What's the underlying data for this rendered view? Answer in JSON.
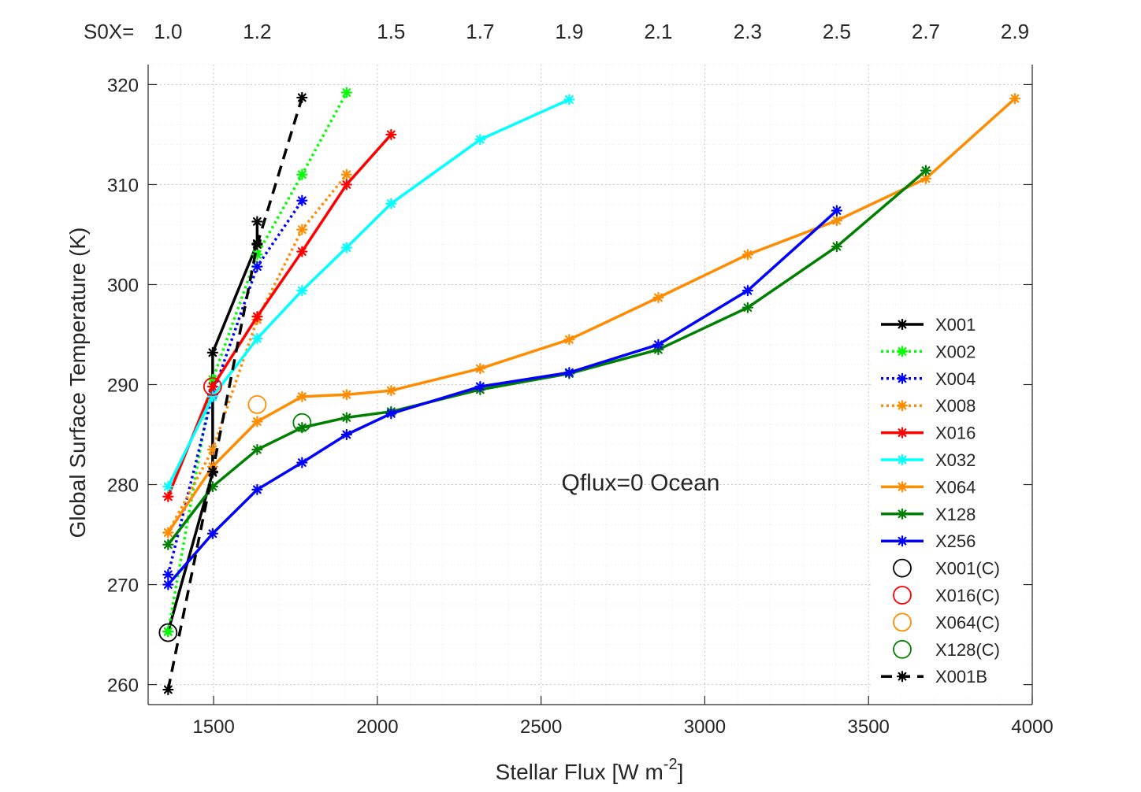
{
  "chart_data": {
    "type": "line",
    "title": "",
    "annotation": "Qflux=0 Ocean",
    "xlabel": "Stellar Flux [W m",
    "xlabel_superscript": "-2",
    "xlabel_suffix": "]",
    "ylabel": "Global Surface Temperature (K)",
    "xlim": [
      1300,
      4000
    ],
    "ylim": [
      258,
      322
    ],
    "xticks": [
      1500,
      2000,
      2500,
      3000,
      3500,
      4000
    ],
    "yticks": [
      260,
      270,
      280,
      290,
      300,
      310,
      320
    ],
    "grid": true,
    "minor_grid": true,
    "top_axis": {
      "label": "S0X=",
      "ticks": [
        {
          "x": 1361,
          "label": "1.0"
        },
        {
          "x": 1633,
          "label": "1.2"
        },
        {
          "x": 2042,
          "label": "1.5"
        },
        {
          "x": 2314,
          "label": "1.7"
        },
        {
          "x": 2586,
          "label": "1.9"
        },
        {
          "x": 2858,
          "label": "2.1"
        },
        {
          "x": 3131,
          "label": "2.3"
        },
        {
          "x": 3403,
          "label": "2.5"
        },
        {
          "x": 3675,
          "label": "2.7"
        },
        {
          "x": 3947,
          "label": "2.9"
        }
      ]
    },
    "legend_position": "lower-right",
    "series": [
      {
        "name": "X001",
        "color": "#000000",
        "dash": "solid",
        "marker": "asterisk",
        "x": [
          1361,
          1497,
          1497,
          1633,
          1633
        ],
        "y": [
          265.3,
          281.2,
          293.2,
          304.1,
          306.3
        ]
      },
      {
        "name": "X002",
        "color": "#00ff00",
        "dash": "dotted",
        "marker": "asterisk",
        "x": [
          1361,
          1497,
          1633,
          1770,
          1906
        ],
        "y": [
          265.3,
          290.5,
          303.0,
          311.0,
          319.2
        ]
      },
      {
        "name": "X004",
        "color": "#0000ff",
        "dash": "dotted",
        "marker": "asterisk",
        "x": [
          1361,
          1497,
          1633,
          1770
        ],
        "y": [
          271.0,
          289.0,
          301.8,
          308.4
        ]
      },
      {
        "name": "X008",
        "color": "#ff8c00",
        "dash": "dotted",
        "marker": "asterisk",
        "x": [
          1361,
          1497,
          1633,
          1770,
          1906
        ],
        "y": [
          275.2,
          283.5,
          296.5,
          305.5,
          311.0
        ]
      },
      {
        "name": "X016",
        "color": "#ff0000",
        "dash": "solid",
        "marker": "asterisk",
        "x": [
          1361,
          1497,
          1633,
          1770,
          1906,
          2042
        ],
        "y": [
          278.8,
          289.8,
          296.8,
          303.3,
          310.0,
          315.0
        ]
      },
      {
        "name": "X032",
        "color": "#00ffff",
        "dash": "solid",
        "marker": "asterisk",
        "x": [
          1361,
          1497,
          1633,
          1770,
          1906,
          2042,
          2314,
          2586
        ],
        "y": [
          279.8,
          288.8,
          294.6,
          299.4,
          303.7,
          308.1,
          314.5,
          318.5
        ]
      },
      {
        "name": "X064",
        "color": "#ff8c00",
        "dash": "solid",
        "marker": "asterisk",
        "x": [
          1361,
          1497,
          1633,
          1770,
          1906,
          2042,
          2314,
          2586,
          2858,
          3131,
          3403,
          3675,
          3947
        ],
        "y": [
          275.2,
          281.8,
          286.3,
          288.8,
          289.0,
          289.4,
          291.6,
          294.5,
          298.7,
          303.0,
          306.4,
          310.6,
          318.6
        ]
      },
      {
        "name": "X128",
        "color": "#008000",
        "dash": "solid",
        "marker": "asterisk",
        "x": [
          1361,
          1497,
          1633,
          1770,
          1906,
          2042,
          2314,
          2586,
          2858,
          3131,
          3403,
          3675
        ],
        "y": [
          274.0,
          279.8,
          283.5,
          285.7,
          286.7,
          287.3,
          289.5,
          291.1,
          293.5,
          297.7,
          303.8,
          311.4
        ]
      },
      {
        "name": "X256",
        "color": "#0000ff",
        "dash": "solid",
        "marker": "asterisk",
        "x": [
          1361,
          1497,
          1633,
          1770,
          1906,
          2042,
          2314,
          2586,
          2858,
          3131,
          3403
        ],
        "y": [
          270.0,
          275.1,
          279.5,
          282.2,
          285.0,
          287.1,
          289.8,
          291.2,
          294.0,
          299.4,
          307.4
        ]
      },
      {
        "name": "X001(C)",
        "color": "#000000",
        "dash": "none",
        "marker": "circle",
        "x": [
          1361
        ],
        "y": [
          265.2
        ]
      },
      {
        "name": "X016(C)",
        "color": "#ff0000",
        "dash": "none",
        "marker": "circle",
        "x": [
          1497
        ],
        "y": [
          289.8
        ]
      },
      {
        "name": "X064(C)",
        "color": "#ff8c00",
        "dash": "none",
        "marker": "circle",
        "x": [
          1633
        ],
        "y": [
          288.0
        ]
      },
      {
        "name": "X128(C)",
        "color": "#008000",
        "dash": "none",
        "marker": "circle",
        "x": [
          1770
        ],
        "y": [
          286.2
        ]
      },
      {
        "name": "X001B",
        "color": "#000000",
        "dash": "dashed",
        "marker": "asterisk",
        "x": [
          1361,
          1497,
          1633,
          1770
        ],
        "y": [
          259.5,
          281.3,
          304.0,
          318.7
        ]
      }
    ]
  }
}
